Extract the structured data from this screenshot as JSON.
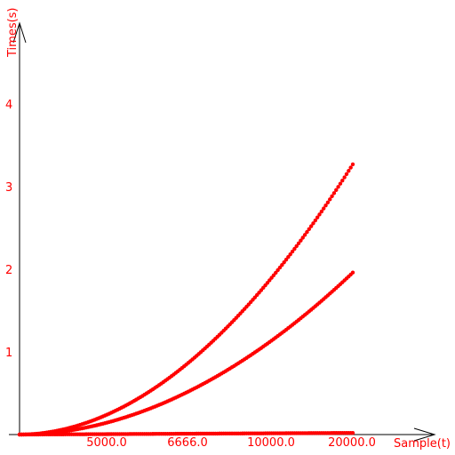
{
  "chart_data": {
    "type": "scatter",
    "xlabel": "Sample(t)",
    "ylabel": "Times(s)",
    "x_ticks": [
      "5000.0",
      "6666.0",
      "10000.0",
      "20000.0"
    ],
    "y_ticks": [
      1,
      2,
      3,
      4
    ],
    "ylim": [
      0,
      5
    ],
    "grid": false,
    "legend": "none",
    "point_color": "#ff0000",
    "series": [
      {
        "x_end": 20000,
        "y_end": 3.27,
        "shape": "quadratic"
      },
      {
        "x_end": 20000,
        "y_end": 1.96,
        "shape": "quadratic"
      },
      {
        "x_end": 20000,
        "y_end": 0.02,
        "shape": "flat"
      }
    ]
  }
}
